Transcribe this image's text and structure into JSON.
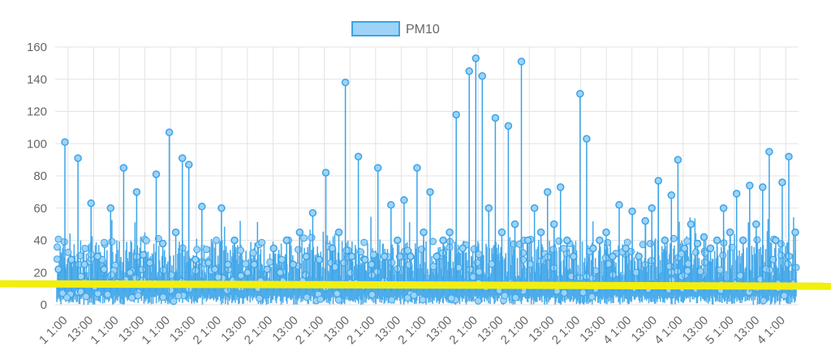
{
  "chart_data": {
    "type": "line",
    "legend": {
      "position": "top-center",
      "entries": [
        "PM10"
      ]
    },
    "colors": {
      "series": "#3aa3e8",
      "series_fill": "#9ed3f6",
      "threshold_line": "#f2ee10",
      "grid": "#e3e3e3"
    },
    "grid": true,
    "ylim": [
      0,
      160
    ],
    "y_ticks": [
      "0",
      "20",
      "40",
      "60",
      "80",
      "100",
      "120",
      "140",
      "160"
    ],
    "x_ticks": [
      "1 1:00",
      "13:00",
      "1 1:00",
      "13:00",
      "1 1:00",
      "13:00",
      "2 1:00",
      "13:00",
      "2 1:00",
      "13:00",
      "2 1:00",
      "13:00",
      "2 1:00",
      "13:00",
      "2 1:00",
      "13:00",
      "2 1:00",
      "13:00",
      "2 1:00",
      "13:00",
      "2 1:00",
      "13:00",
      "4 1:00",
      "13:00",
      "4 1:00",
      "13:00",
      "5 1:00",
      "13:00",
      "4 1:00"
    ],
    "threshold": {
      "value": 12
    },
    "series": [
      {
        "name": "PM10",
        "values": [
          22,
          101,
          28,
          91,
          25,
          63,
          30,
          22,
          60,
          14,
          85,
          20,
          70,
          31,
          26,
          81,
          38,
          107,
          45,
          91,
          87,
          28,
          61,
          26,
          22,
          60,
          25,
          40,
          18,
          20,
          25,
          15,
          22,
          35,
          20,
          40,
          25,
          45,
          30,
          57,
          28,
          82,
          35,
          45,
          138,
          30,
          92,
          28,
          25,
          85,
          30,
          62,
          40,
          65,
          30,
          85,
          45,
          70,
          30,
          40,
          45,
          118,
          35,
          145,
          153,
          142,
          60,
          116,
          45,
          111,
          50,
          151,
          40,
          60,
          45,
          70,
          50,
          73,
          40,
          30,
          131,
          103,
          35,
          40,
          45,
          30,
          62,
          35,
          58,
          30,
          52,
          60,
          77,
          40,
          68,
          90,
          35,
          50,
          38,
          42,
          35,
          40,
          60,
          45,
          69,
          40,
          74,
          50,
          73,
          95,
          40,
          76,
          92,
          45
        ]
      }
    ]
  }
}
